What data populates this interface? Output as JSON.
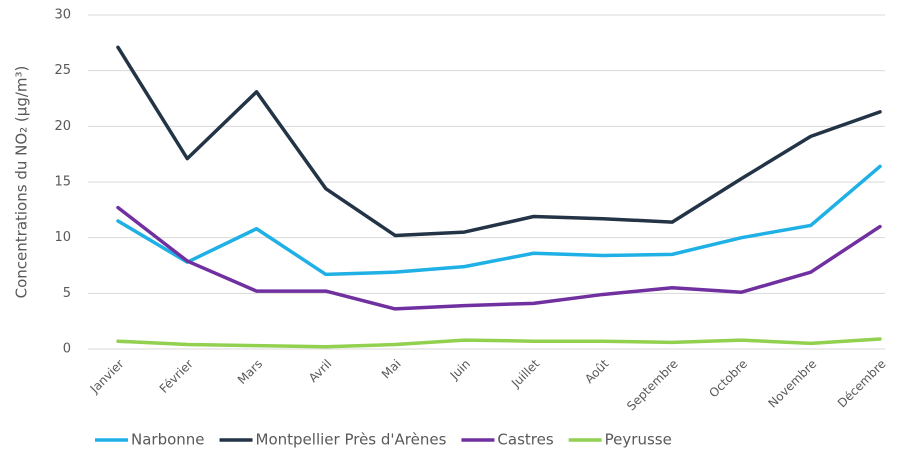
{
  "chart_data": {
    "type": "line",
    "y_label": "Concentrations du NO₂ (µg/m³)",
    "categories": [
      "Janvier",
      "Février",
      "Mars",
      "Avril",
      "Mai",
      "Juin",
      "Juillet",
      "Août",
      "Septembre",
      "Octobre",
      "Novembre",
      "Décembre"
    ],
    "series": [
      {
        "name": "Narbonne",
        "color": "#1fb0e6",
        "values": [
          11.5,
          7.8,
          10.8,
          6.7,
          6.9,
          7.4,
          8.6,
          8.4,
          8.5,
          10.0,
          11.1,
          16.4
        ]
      },
      {
        "name": "Montpellier Près d'Arènes",
        "color": "#243447",
        "values": [
          27.1,
          17.1,
          23.1,
          14.4,
          10.2,
          10.5,
          11.9,
          11.7,
          11.4,
          15.3,
          19.1,
          21.3
        ]
      },
      {
        "name": "Castres",
        "color": "#7030a0",
        "values": [
          12.7,
          7.9,
          5.2,
          5.2,
          3.6,
          3.9,
          4.1,
          4.9,
          5.5,
          5.1,
          6.9,
          11.0
        ]
      },
      {
        "name": "Peyrusse",
        "color": "#92d050",
        "values": [
          0.7,
          0.4,
          0.3,
          0.2,
          0.4,
          0.8,
          0.7,
          0.7,
          0.6,
          0.8,
          0.5,
          0.9
        ]
      }
    ],
    "ylim": [
      0,
      30
    ],
    "yticks": [
      0,
      5,
      10,
      15,
      20,
      25,
      30
    ],
    "grid": true,
    "legend": "bottom"
  }
}
